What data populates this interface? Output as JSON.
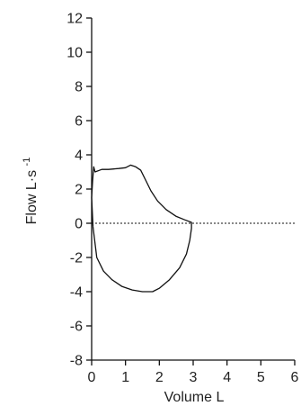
{
  "chart_data": {
    "type": "line",
    "title": "",
    "xlabel": "Volume L",
    "ylabel": {
      "text": "Flow L·s",
      "superscript": "-1"
    },
    "xlim": [
      0,
      6
    ],
    "ylim": [
      -8,
      12
    ],
    "xticks": [
      0,
      1,
      2,
      3,
      4,
      5,
      6
    ],
    "yticks": [
      -8,
      -6,
      -4,
      -2,
      0,
      2,
      4,
      6,
      8,
      10,
      12
    ],
    "grid": false,
    "legend": "none",
    "reference_line": {
      "y": 0,
      "style": "dotted",
      "x_range": [
        0,
        6
      ]
    },
    "line_color": "#111111",
    "series": [
      {
        "points": [
          [
            0.04,
            -0.2
          ],
          [
            0.0,
            1.5
          ],
          [
            0.03,
            2.5
          ],
          [
            0.06,
            3.3
          ],
          [
            0.1,
            3.0
          ],
          [
            0.3,
            3.15
          ],
          [
            0.5,
            3.15
          ],
          [
            0.8,
            3.2
          ],
          [
            1.0,
            3.25
          ],
          [
            1.15,
            3.4
          ],
          [
            1.3,
            3.3
          ],
          [
            1.45,
            3.1
          ],
          [
            1.6,
            2.5
          ],
          [
            1.75,
            1.9
          ],
          [
            1.95,
            1.3
          ],
          [
            2.2,
            0.8
          ],
          [
            2.5,
            0.4
          ],
          [
            2.75,
            0.2
          ],
          [
            2.95,
            0.05
          ],
          [
            2.95,
            -0.3
          ],
          [
            2.9,
            -1.0
          ],
          [
            2.8,
            -1.8
          ],
          [
            2.6,
            -2.6
          ],
          [
            2.3,
            -3.3
          ],
          [
            2.0,
            -3.8
          ],
          [
            1.8,
            -4.0
          ],
          [
            1.5,
            -4.0
          ],
          [
            1.2,
            -3.9
          ],
          [
            0.9,
            -3.7
          ],
          [
            0.6,
            -3.3
          ],
          [
            0.35,
            -2.8
          ],
          [
            0.15,
            -2.0
          ],
          [
            0.04,
            -0.2
          ]
        ]
      }
    ]
  }
}
